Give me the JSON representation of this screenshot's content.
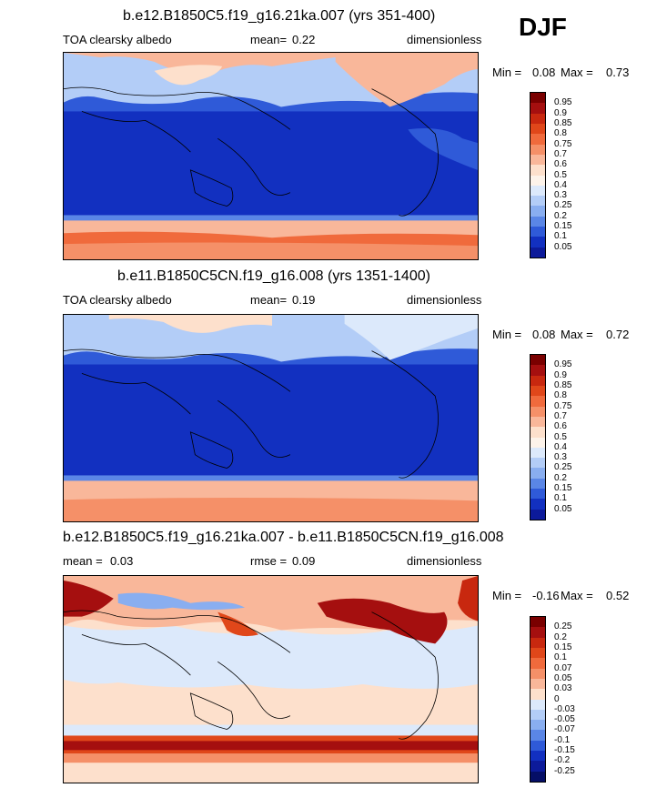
{
  "season": "DJF",
  "panels": [
    {
      "title": "b.e12.B1850C5.f19_g16.21ka.007 (yrs 351-400)",
      "left_label": "TOA clearsky albedo",
      "stat_label": "mean=",
      "stat_value": "0.22",
      "units": "dimensionless",
      "min_label": "Min =",
      "min_value": "0.08",
      "max_label": "Max =",
      "max_value": "0.73"
    },
    {
      "title": "b.e11.B1850C5CN.f19_g16.008 (yrs 1351-1400)",
      "left_label": "TOA clearsky albedo",
      "stat_label": "mean=",
      "stat_value": "0.19",
      "units": "dimensionless",
      "min_label": "Min =",
      "min_value": "0.08",
      "max_label": "Max =",
      "max_value": "0.72"
    },
    {
      "title": "b.e12.B1850C5.f19_g16.21ka.007 - b.e11.B1850C5CN.f19_g16.008",
      "left_label": "mean =",
      "left_value": "0.03",
      "stat_label": "rmse =",
      "stat_value": "0.09",
      "units": "dimensionless",
      "min_label": "Min =",
      "min_value": "-0.16",
      "max_label": "Max =",
      "max_value": "0.52"
    }
  ],
  "colorbars": {
    "absolute": {
      "labels": [
        "0.95",
        "0.9",
        "0.85",
        "0.8",
        "0.75",
        "0.7",
        "0.6",
        "0.5",
        "0.4",
        "0.3",
        "0.25",
        "0.2",
        "0.15",
        "0.1",
        "0.05"
      ],
      "colors": [
        "#7a0000",
        "#a50f0f",
        "#c8280f",
        "#e0471a",
        "#f06a3c",
        "#f59068",
        "#f9b79a",
        "#fde0cc",
        "#fdf3ea",
        "#dce9fb",
        "#b3cdf7",
        "#89aef0",
        "#5a86e6",
        "#2f5ad8",
        "#1230c0",
        "#0c1a9a"
      ]
    },
    "difference": {
      "labels": [
        "0.25",
        "0.2",
        "0.15",
        "0.1",
        "0.07",
        "0.05",
        "0.03",
        "0",
        "-0.03",
        "-0.05",
        "-0.07",
        "-0.1",
        "-0.15",
        "-0.2",
        "-0.25"
      ],
      "colors": [
        "#7a0000",
        "#a50f0f",
        "#c8280f",
        "#e0471a",
        "#f06a3c",
        "#f59068",
        "#f9b79a",
        "#fde0cc",
        "#dce9fb",
        "#b3cdf7",
        "#89aef0",
        "#5a86e6",
        "#2f5ad8",
        "#1230c0",
        "#0c1a9a",
        "#050e66"
      ]
    }
  }
}
